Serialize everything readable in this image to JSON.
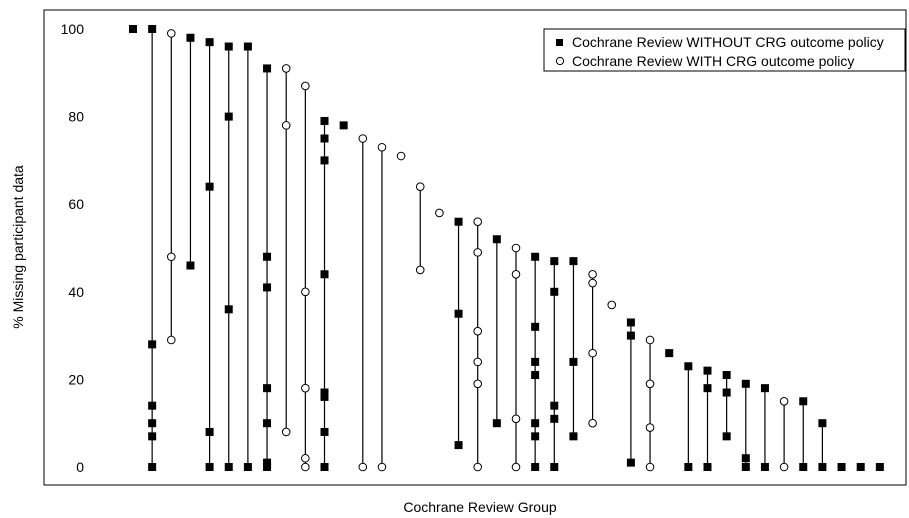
{
  "chart_data": {
    "type": "scatter",
    "title": "",
    "xlabel": "Cochrane Review Group",
    "ylabel": "% Missing participant data",
    "ylim": [
      0,
      100
    ],
    "yticks": [
      "0",
      "20",
      "40",
      "60",
      "80",
      "100"
    ],
    "grid": false,
    "legend_position": "top-right",
    "legend": [
      {
        "label": "Cochrane Review WITHOUT CRG outcome policy",
        "marker": "filled-square"
      },
      {
        "label": "Cochrane Review WITH CRG outcome policy",
        "marker": "open-circle"
      }
    ],
    "colors": {
      "marker": "#000000",
      "open_fill": "#ffffff",
      "line": "#000000"
    },
    "groups": [
      {
        "group": 1,
        "policy": "without",
        "values": [
          100
        ]
      },
      {
        "group": 2,
        "policy": "without",
        "values": [
          100,
          28,
          14,
          10,
          7,
          0
        ]
      },
      {
        "group": 3,
        "policy": "with",
        "values": [
          99,
          48,
          29
        ]
      },
      {
        "group": 4,
        "policy": "without",
        "values": [
          98,
          46
        ]
      },
      {
        "group": 5,
        "policy": "without",
        "values": [
          97,
          64,
          8,
          0
        ]
      },
      {
        "group": 6,
        "policy": "without",
        "values": [
          96,
          80,
          36,
          0
        ]
      },
      {
        "group": 7,
        "policy": "without",
        "values": [
          96,
          0
        ]
      },
      {
        "group": 8,
        "policy": "without",
        "values": [
          91,
          48,
          41,
          18,
          10,
          1,
          0
        ]
      },
      {
        "group": 9,
        "policy": "with",
        "values": [
          91,
          78,
          8
        ]
      },
      {
        "group": 10,
        "policy": "with",
        "values": [
          87,
          40,
          18,
          2,
          0
        ]
      },
      {
        "group": 11,
        "policy": "without",
        "values": [
          79,
          75,
          70,
          44,
          17,
          16,
          8,
          0
        ]
      },
      {
        "group": 12,
        "policy": "without",
        "values": [
          78
        ]
      },
      {
        "group": 13,
        "policy": "with",
        "values": [
          75,
          0
        ]
      },
      {
        "group": 14,
        "policy": "with",
        "values": [
          73,
          0
        ]
      },
      {
        "group": 15,
        "policy": "with",
        "values": [
          71
        ]
      },
      {
        "group": 16,
        "policy": "with",
        "values": [
          64,
          45
        ]
      },
      {
        "group": 17,
        "policy": "with",
        "values": [
          58
        ]
      },
      {
        "group": 18,
        "policy": "without",
        "values": [
          56,
          35,
          5
        ]
      },
      {
        "group": 19,
        "policy": "with",
        "values": [
          56,
          49,
          31,
          24,
          19,
          0
        ]
      },
      {
        "group": 20,
        "policy": "without",
        "values": [
          52,
          10
        ]
      },
      {
        "group": 21,
        "policy": "with",
        "values": [
          50,
          44,
          11,
          0
        ]
      },
      {
        "group": 22,
        "policy": "without",
        "values": [
          48,
          32,
          24,
          21,
          10,
          7,
          0
        ]
      },
      {
        "group": 23,
        "policy": "without",
        "values": [
          47,
          40,
          14,
          11,
          0
        ]
      },
      {
        "group": 24,
        "policy": "without",
        "values": [
          47,
          24,
          7
        ]
      },
      {
        "group": 25,
        "policy": "with",
        "values": [
          44,
          42,
          26,
          10
        ]
      },
      {
        "group": 26,
        "policy": "with",
        "values": [
          37
        ]
      },
      {
        "group": 27,
        "policy": "without",
        "values": [
          33,
          30,
          1
        ]
      },
      {
        "group": 28,
        "policy": "with",
        "values": [
          29,
          19,
          9,
          0
        ]
      },
      {
        "group": 29,
        "policy": "without",
        "values": [
          26
        ]
      },
      {
        "group": 30,
        "policy": "without",
        "values": [
          23,
          0
        ]
      },
      {
        "group": 31,
        "policy": "without",
        "values": [
          22,
          18,
          0
        ]
      },
      {
        "group": 32,
        "policy": "without",
        "values": [
          21,
          17,
          7
        ]
      },
      {
        "group": 33,
        "policy": "without",
        "values": [
          19,
          2,
          0
        ]
      },
      {
        "group": 34,
        "policy": "without",
        "values": [
          18,
          0
        ]
      },
      {
        "group": 35,
        "policy": "with",
        "values": [
          15,
          0
        ]
      },
      {
        "group": 36,
        "policy": "without",
        "values": [
          15,
          0
        ]
      },
      {
        "group": 37,
        "policy": "without",
        "values": [
          10,
          0
        ]
      },
      {
        "group": 38,
        "policy": "without",
        "values": [
          0
        ]
      },
      {
        "group": 39,
        "policy": "without",
        "values": [
          0
        ]
      },
      {
        "group": 40,
        "policy": "without",
        "values": [
          0
        ]
      }
    ]
  }
}
